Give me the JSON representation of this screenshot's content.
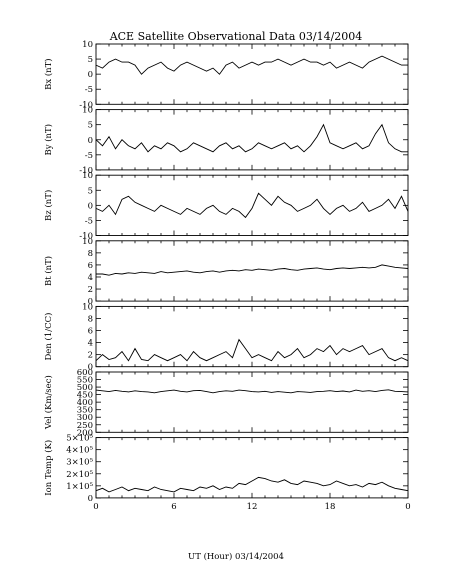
{
  "chart_data": {
    "type": "line",
    "title": "ACE Satellite Observational Data   03/14/2004",
    "xlabel": "UT (Hour)   03/14/2004",
    "x_ticks": [
      "0",
      "6",
      "12",
      "18",
      "0"
    ],
    "xlim": [
      0,
      24
    ],
    "panels": [
      {
        "ylabel": "Bx (nT)",
        "ylim": [
          -10,
          10
        ],
        "yticks": [
          "-10",
          "-5",
          "0",
          "5",
          "10"
        ],
        "ytick_values": [
          -10,
          -5,
          0,
          5,
          10
        ],
        "series": [
          {
            "x": [
              0,
              0.5,
              1,
              1.5,
              2,
              2.5,
              3,
              3.5,
              4,
              4.5,
              5,
              5.5,
              6,
              6.5,
              7,
              7.5,
              8,
              8.5,
              9,
              9.5,
              10,
              10.5,
              11,
              11.5,
              12,
              12.5,
              13,
              13.5,
              14,
              14.5,
              15,
              15.5,
              16,
              16.5,
              17,
              17.5,
              18,
              18.5,
              19,
              19.5,
              20,
              20.5,
              21,
              21.5,
              22,
              22.5,
              23,
              23.5,
              24
            ],
            "values": [
              3,
              2,
              4,
              5,
              4,
              4,
              3,
              0,
              2,
              3,
              4,
              2,
              1,
              3,
              4,
              3,
              2,
              1,
              2,
              0,
              3,
              4,
              2,
              3,
              4,
              3,
              4,
              4,
              5,
              4,
              3,
              4,
              5,
              4,
              4,
              3,
              4,
              2,
              3,
              4,
              3,
              2,
              4,
              5,
              6,
              5,
              4,
              3,
              3
            ]
          }
        ]
      },
      {
        "ylabel": "By (nT)",
        "ylim": [
          -10,
          10
        ],
        "yticks": [
          "-10",
          "-5",
          "0",
          "5",
          "10"
        ],
        "ytick_values": [
          -10,
          -5,
          0,
          5,
          10
        ],
        "series": [
          {
            "x": [
              0,
              0.5,
              1,
              1.5,
              2,
              2.5,
              3,
              3.5,
              4,
              4.5,
              5,
              5.5,
              6,
              6.5,
              7,
              7.5,
              8,
              8.5,
              9,
              9.5,
              10,
              10.5,
              11,
              11.5,
              12,
              12.5,
              13,
              13.5,
              14,
              14.5,
              15,
              15.5,
              16,
              16.5,
              17,
              17.5,
              18,
              18.5,
              19,
              19.5,
              20,
              20.5,
              21,
              21.5,
              22,
              22.5,
              23,
              23.5,
              24
            ],
            "values": [
              0,
              -2,
              1,
              -3,
              0,
              -2,
              -3,
              -1,
              -4,
              -2,
              -3,
              -1,
              -2,
              -4,
              -3,
              -1,
              -2,
              -3,
              -4,
              -2,
              -1,
              -3,
              -2,
              -4,
              -3,
              -1,
              -2,
              -3,
              -2,
              -1,
              -3,
              -2,
              -4,
              -2,
              1,
              5,
              -1,
              -2,
              -3,
              -2,
              -1,
              -3,
              -2,
              2,
              5,
              -1,
              -3,
              -4,
              -4
            ]
          }
        ]
      },
      {
        "ylabel": "Bz (nT)",
        "ylim": [
          -10,
          10
        ],
        "yticks": [
          "-10",
          "-5",
          "0",
          "5",
          "10"
        ],
        "ytick_values": [
          -10,
          -5,
          0,
          5,
          10
        ],
        "series": [
          {
            "x": [
              0,
              0.5,
              1,
              1.5,
              2,
              2.5,
              3,
              3.5,
              4,
              4.5,
              5,
              5.5,
              6,
              6.5,
              7,
              7.5,
              8,
              8.5,
              9,
              9.5,
              10,
              10.5,
              11,
              11.5,
              12,
              12.5,
              13,
              13.5,
              14,
              14.5,
              15,
              15.5,
              16,
              16.5,
              17,
              17.5,
              18,
              18.5,
              19,
              19.5,
              20,
              20.5,
              21,
              21.5,
              22,
              22.5,
              23,
              23.5,
              24
            ],
            "values": [
              -1,
              -2,
              0,
              -3,
              2,
              3,
              1,
              0,
              -1,
              -2,
              0,
              -1,
              -2,
              -3,
              -1,
              -2,
              -3,
              -1,
              0,
              -2,
              -3,
              -1,
              -2,
              -4,
              -1,
              4,
              2,
              0,
              3,
              1,
              0,
              -2,
              -1,
              0,
              2,
              -1,
              -3,
              -1,
              0,
              -2,
              -1,
              1,
              -2,
              -1,
              0,
              2,
              -1,
              3,
              -2
            ]
          }
        ]
      },
      {
        "ylabel": "Bt (nT)",
        "ylim": [
          0,
          10
        ],
        "yticks": [
          "0",
          "2",
          "4",
          "6",
          "8",
          "10"
        ],
        "ytick_values": [
          0,
          2,
          4,
          6,
          8,
          10
        ],
        "series": [
          {
            "x": [
              0,
              0.5,
              1,
              1.5,
              2,
              2.5,
              3,
              3.5,
              4,
              4.5,
              5,
              5.5,
              6,
              6.5,
              7,
              7.5,
              8,
              8.5,
              9,
              9.5,
              10,
              10.5,
              11,
              11.5,
              12,
              12.5,
              13,
              13.5,
              14,
              14.5,
              15,
              15.5,
              16,
              16.5,
              17,
              17.5,
              18,
              18.5,
              19,
              19.5,
              20,
              20.5,
              21,
              21.5,
              22,
              22.5,
              23,
              23.5,
              24
            ],
            "values": [
              4.5,
              4.5,
              4.3,
              4.6,
              4.5,
              4.7,
              4.6,
              4.8,
              4.7,
              4.6,
              4.9,
              4.7,
              4.8,
              4.9,
              5.0,
              4.8,
              4.7,
              4.9,
              5.0,
              4.8,
              5.0,
              5.1,
              5.0,
              5.2,
              5.1,
              5.3,
              5.2,
              5.1,
              5.3,
              5.4,
              5.2,
              5.1,
              5.3,
              5.4,
              5.5,
              5.3,
              5.2,
              5.4,
              5.5,
              5.4,
              5.5,
              5.6,
              5.5,
              5.6,
              6.0,
              5.8,
              5.6,
              5.5,
              5.4
            ]
          }
        ]
      },
      {
        "ylabel": "Den (1/CC)",
        "ylim": [
          0,
          10
        ],
        "yticks": [
          "0",
          "2",
          "4",
          "6",
          "8",
          "10"
        ],
        "ytick_values": [
          0,
          2,
          4,
          6,
          8,
          10
        ],
        "series": [
          {
            "x": [
              0,
              0.5,
              1,
              1.5,
              2,
              2.5,
              3,
              3.5,
              4,
              4.5,
              5,
              5.5,
              6,
              6.5,
              7,
              7.5,
              8,
              8.5,
              9,
              9.5,
              10,
              10.5,
              11,
              11.5,
              12,
              12.5,
              13,
              13.5,
              14,
              14.5,
              15,
              15.5,
              16,
              16.5,
              17,
              17.5,
              18,
              18.5,
              19,
              19.5,
              20,
              20.5,
              21,
              21.5,
              22,
              22.5,
              23,
              23.5,
              24
            ],
            "values": [
              1.0,
              2.0,
              1.2,
              1.5,
              2.5,
              1.0,
              3.0,
              1.2,
              1.0,
              2.0,
              1.5,
              1.0,
              1.5,
              2.0,
              1.0,
              2.5,
              1.5,
              1.0,
              1.5,
              2.0,
              2.5,
              1.5,
              4.5,
              3.0,
              1.5,
              2.0,
              1.5,
              1.0,
              2.5,
              1.5,
              2.0,
              3.0,
              1.5,
              2.0,
              3.0,
              2.5,
              3.5,
              2.0,
              3.0,
              2.5,
              3.0,
              3.5,
              2.0,
              2.5,
              3.0,
              1.5,
              1.0,
              1.5,
              1.0
            ]
          }
        ]
      },
      {
        "ylabel": "Vel (Km/sec)",
        "ylim": [
          200,
          600
        ],
        "yticks": [
          "200",
          "250",
          "300",
          "350",
          "400",
          "450",
          "500",
          "550",
          "600"
        ],
        "ytick_values": [
          200,
          250,
          300,
          350,
          400,
          450,
          500,
          550,
          600
        ],
        "series": [
          {
            "x": [
              0,
              0.5,
              1,
              1.5,
              2,
              2.5,
              3,
              3.5,
              4,
              4.5,
              5,
              5.5,
              6,
              6.5,
              7,
              7.5,
              8,
              8.5,
              9,
              9.5,
              10,
              10.5,
              11,
              11.5,
              12,
              12.5,
              13,
              13.5,
              14,
              14.5,
              15,
              15.5,
              16,
              16.5,
              17,
              17.5,
              18,
              18.5,
              19,
              19.5,
              20,
              20.5,
              21,
              21.5,
              22,
              22.5,
              23,
              23.5,
              24
            ],
            "values": [
              480,
              475,
              470,
              478,
              472,
              468,
              475,
              470,
              468,
              462,
              470,
              475,
              480,
              472,
              468,
              476,
              478,
              470,
              462,
              470,
              475,
              472,
              480,
              476,
              470,
              468,
              472,
              465,
              470,
              466,
              462,
              470,
              468,
              465,
              470,
              472,
              476,
              470,
              474,
              468,
              480,
              472,
              476,
              470,
              478,
              482,
              472,
              470,
              468
            ]
          }
        ]
      },
      {
        "ylabel": "Ion Temp (K)",
        "ylim": [
          0,
          500000
        ],
        "yticks": [
          "0",
          "1×10⁵",
          "2×10⁵",
          "3×10⁵",
          "4×10⁵",
          "5×10⁵"
        ],
        "ytick_values": [
          0,
          100000,
          200000,
          300000,
          400000,
          500000
        ],
        "series": [
          {
            "x": [
              0,
              0.5,
              1,
              1.5,
              2,
              2.5,
              3,
              3.5,
              4,
              4.5,
              5,
              5.5,
              6,
              6.5,
              7,
              7.5,
              8,
              8.5,
              9,
              9.5,
              10,
              10.5,
              11,
              11.5,
              12,
              12.5,
              13,
              13.5,
              14,
              14.5,
              15,
              15.5,
              16,
              16.5,
              17,
              17.5,
              18,
              18.5,
              19,
              19.5,
              20,
              20.5,
              21,
              21.5,
              22,
              22.5,
              23,
              23.5,
              24
            ],
            "values": [
              60000,
              80000,
              50000,
              70000,
              90000,
              60000,
              80000,
              70000,
              60000,
              90000,
              70000,
              60000,
              50000,
              80000,
              70000,
              60000,
              90000,
              80000,
              100000,
              70000,
              90000,
              80000,
              120000,
              110000,
              140000,
              170000,
              160000,
              140000,
              130000,
              150000,
              120000,
              110000,
              140000,
              130000,
              120000,
              100000,
              110000,
              140000,
              120000,
              100000,
              110000,
              90000,
              120000,
              110000,
              130000,
              100000,
              80000,
              70000,
              60000
            ]
          }
        ]
      }
    ]
  }
}
